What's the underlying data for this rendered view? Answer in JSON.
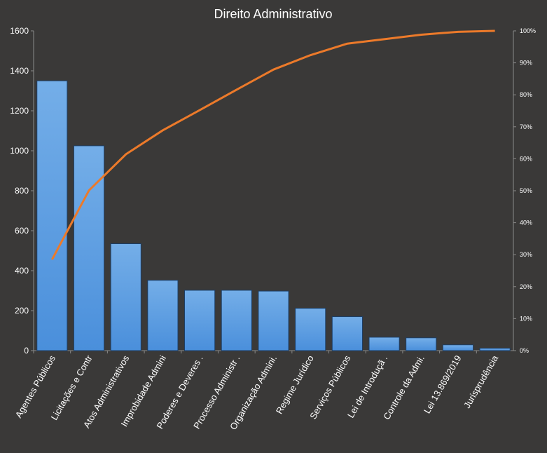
{
  "chart_data": {
    "type": "bar",
    "title": "Direito Administrativo",
    "categories": [
      "Agentes Públicos",
      "Licitações e Contr",
      "Atos Administrativos",
      "Improbidade Admini",
      "Poderes e Deveres .",
      "Processo Administr .",
      "Organização Admini.",
      "Regime Jurídico",
      "Serviços Públicos",
      "Lei de Introduçã .",
      "Controle da Admi.",
      "Lei 13.869/2019",
      "Jurisprudência"
    ],
    "series": [
      {
        "type": "bar",
        "axis": "left",
        "color": "#4a8fdb",
        "values": [
          1350,
          1025,
          535,
          352,
          302,
          302,
          298,
          212,
          170,
          67,
          64,
          29,
          12
        ]
      },
      {
        "type": "line",
        "axis": "right",
        "color": "#ec7a2a",
        "values": [
          0.285,
          0.501,
          0.614,
          0.689,
          0.752,
          0.816,
          0.879,
          0.924,
          0.96,
          0.974,
          0.988,
          0.997,
          1.0
        ]
      }
    ],
    "ylim": [
      0,
      1600
    ],
    "yticks": [
      "0",
      "200",
      "400",
      "600",
      "800",
      "1000",
      "1200",
      "1400",
      "1600"
    ],
    "y2lim": [
      0,
      1
    ],
    "y2ticks": [
      "0%",
      "10%",
      "20%",
      "30%",
      "40%",
      "50%",
      "60%",
      "70%",
      "80%",
      "90%",
      "100%"
    ],
    "grid": false,
    "legend": "none",
    "colors": {
      "background": "#3a3938",
      "text": "#ffffff",
      "axis": "#8a8a8a"
    }
  }
}
